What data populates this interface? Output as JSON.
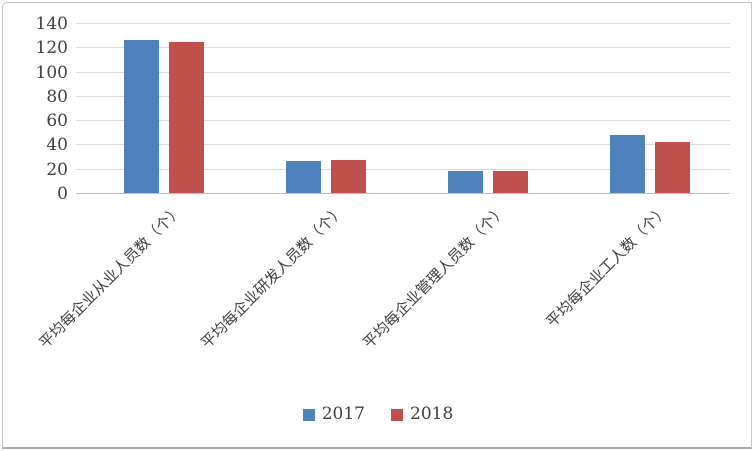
{
  "chart_data": {
    "type": "bar",
    "title": "",
    "xlabel": "",
    "ylabel": "",
    "categories": [
      "平均每企业从业人员数（个）",
      "平均每企业研发人员数（个）",
      "平均每企业管理人员数（个）",
      "平均每企业工人数（个）"
    ],
    "series": [
      {
        "name": "2017",
        "color": "#4F81BD",
        "values": [
          126,
          26,
          18,
          48
        ]
      },
      {
        "name": "2018",
        "color": "#C0504D",
        "values": [
          124,
          27,
          18,
          42
        ]
      }
    ],
    "ylim": [
      0,
      140
    ],
    "ytick_step": 20,
    "yticks": [
      "0",
      "20",
      "40",
      "60",
      "80",
      "100",
      "120",
      "140"
    ],
    "grid": "horizontal",
    "legend_position": "bottom",
    "colors": {
      "gridline": "#d9d9d9",
      "axis_line": "#bfbfbf",
      "tick_text": "#404040"
    }
  }
}
